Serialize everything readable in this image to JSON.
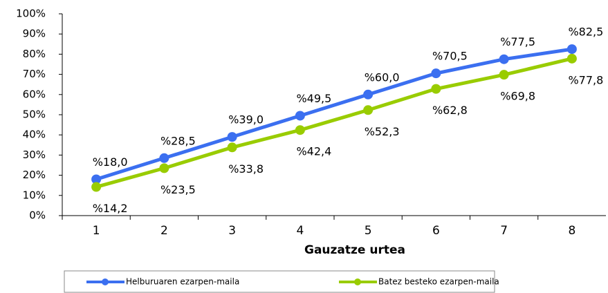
{
  "chart_data": {
    "type": "line",
    "x_label": "Gauzatze urtea",
    "categories": [
      "1",
      "2",
      "3",
      "4",
      "5",
      "6",
      "7",
      "8"
    ],
    "series": [
      {
        "name": "Helburuaren ezarpen-maila",
        "color": "#3b6ff0",
        "values": [
          18.0,
          28.5,
          39.0,
          49.5,
          60.0,
          70.5,
          77.5,
          82.5
        ],
        "value_labels": [
          "%18,0",
          "%28,5",
          "%39,0",
          "%49,5",
          "%60,0",
          "%70,5",
          "%77,5",
          "%82,5"
        ]
      },
      {
        "name": "Batez besteko ezarpen-maila",
        "color": "#99cc00",
        "values": [
          14.2,
          23.5,
          33.8,
          42.4,
          52.3,
          62.8,
          69.8,
          77.8
        ],
        "value_labels": [
          "%14,2",
          "%23,5",
          "%33,8",
          "%42,4",
          "%52,3",
          "%62,8",
          "%69,8",
          "%77,8"
        ]
      }
    ],
    "ylim": [
      0,
      100
    ],
    "yticks": [
      {
        "value": 0,
        "label": "0%"
      },
      {
        "value": 10,
        "label": "10%"
      },
      {
        "value": 20,
        "label": "20%"
      },
      {
        "value": 30,
        "label": "30%"
      },
      {
        "value": 40,
        "label": "40%"
      },
      {
        "value": 50,
        "label": "50%"
      },
      {
        "value": 60,
        "label": "60%"
      },
      {
        "value": 70,
        "label": "70%"
      },
      {
        "value": 80,
        "label": "80%"
      },
      {
        "value": 90,
        "label": "90%"
      },
      {
        "value": 100,
        "label": "100%"
      }
    ],
    "grid": false
  }
}
